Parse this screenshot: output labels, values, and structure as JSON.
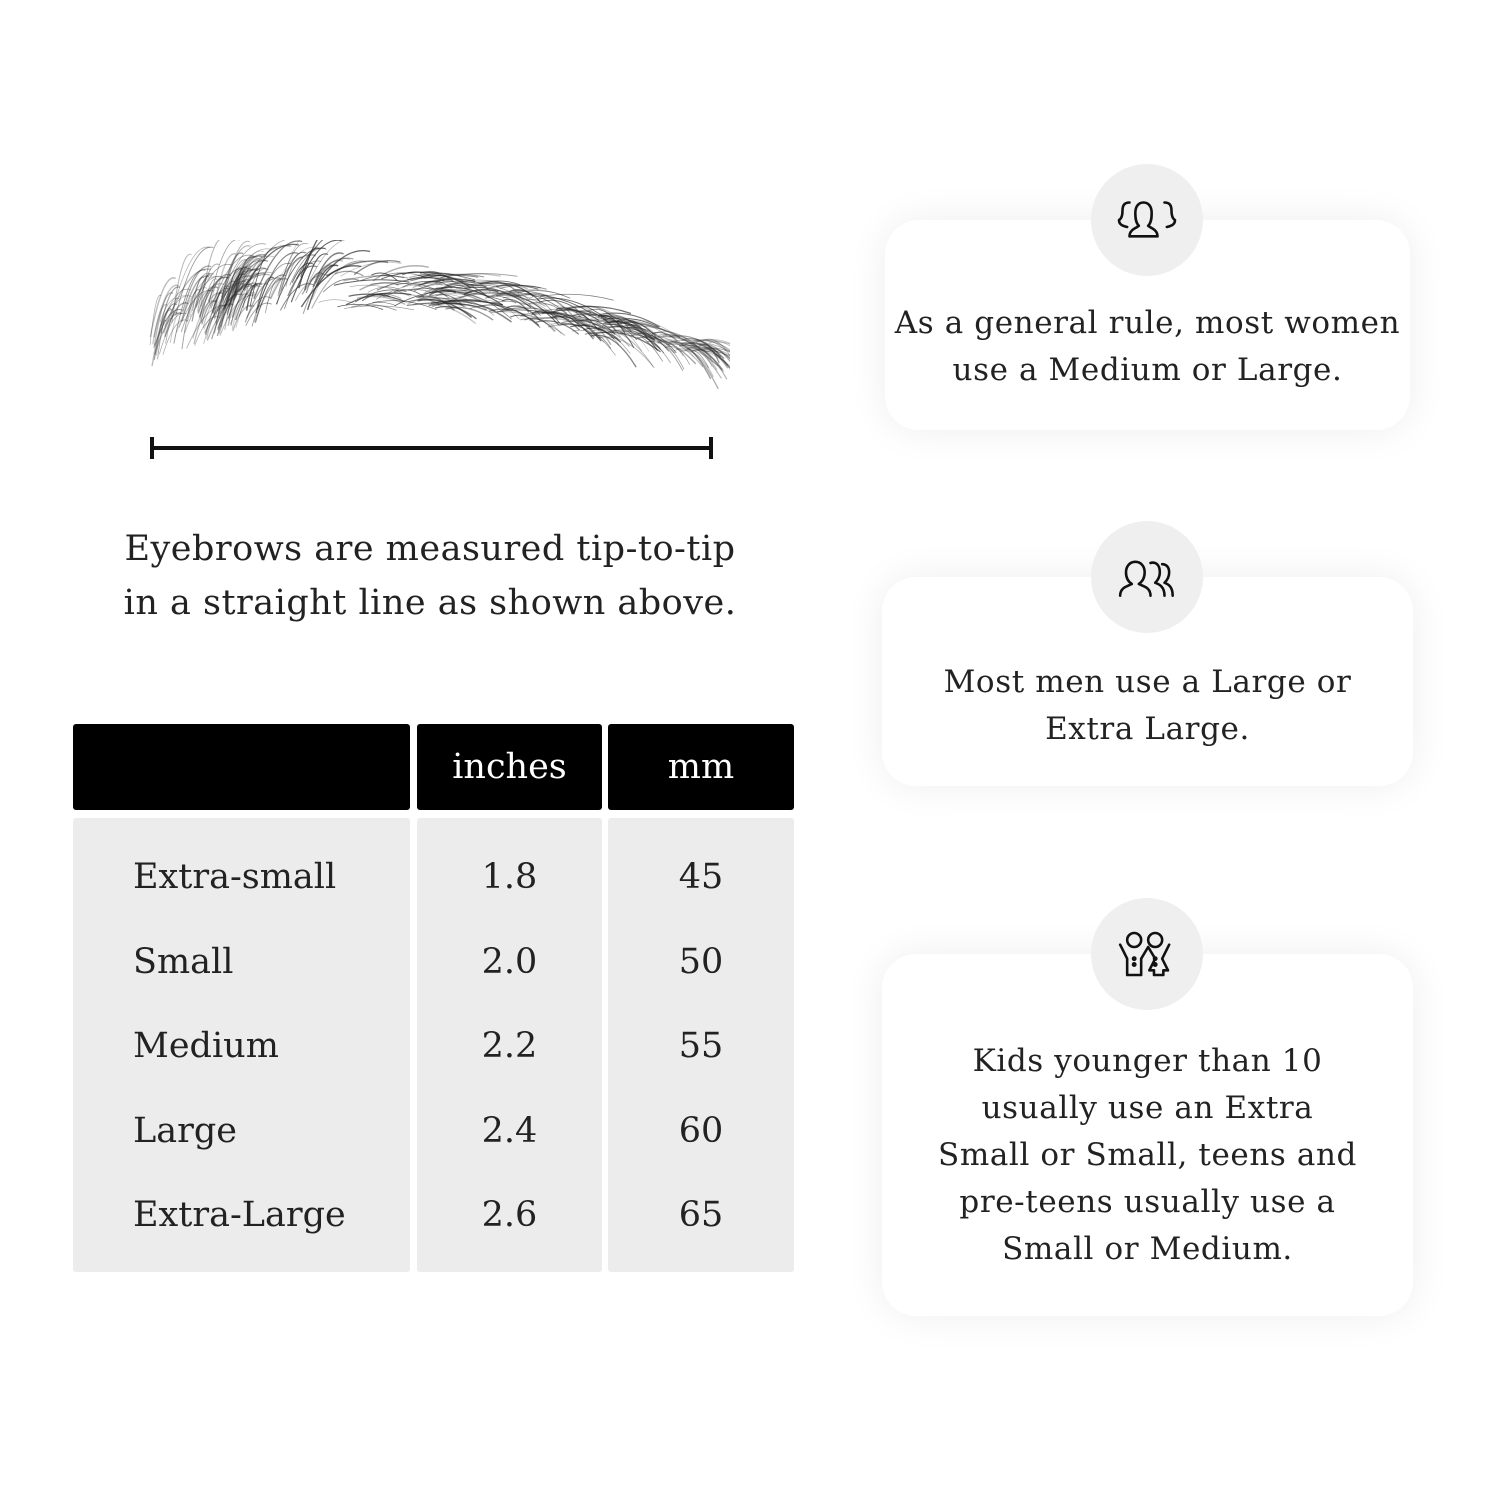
{
  "measurement_caption": [
    "Eyebrows are measured tip-to-tip",
    "in a straight line as shown above."
  ],
  "table": {
    "headers": [
      "",
      "inches",
      "mm"
    ],
    "rows": [
      {
        "size": "Extra-small",
        "inches": "1.8",
        "mm": "45"
      },
      {
        "size": "Small",
        "inches": "2.0",
        "mm": "50"
      },
      {
        "size": "Medium",
        "inches": "2.2",
        "mm": "55"
      },
      {
        "size": "Large",
        "inches": "2.4",
        "mm": "60"
      },
      {
        "size": "Extra-Large",
        "inches": "2.6",
        "mm": "65"
      }
    ]
  },
  "cards": [
    {
      "icon": "women-group-icon",
      "lines": [
        "As a general rule, most women",
        "use a Medium or Large."
      ]
    },
    {
      "icon": "men-group-icon",
      "lines": [
        "Most men use a Large or",
        "Extra Large."
      ]
    },
    {
      "icon": "kids-icon",
      "lines": [
        "Kids younger than 10",
        "usually use an Extra",
        "Small or Small, teens and",
        "pre-teens usually use a",
        "Small or Medium."
      ]
    }
  ]
}
